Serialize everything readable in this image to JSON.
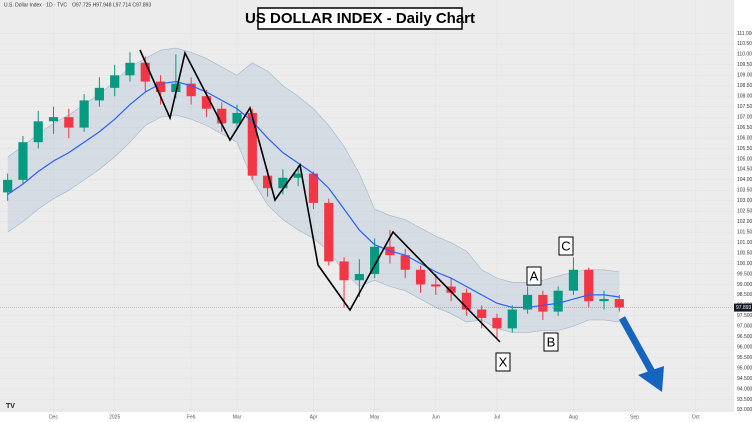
{
  "chart_data": {
    "type": "candlestick",
    "title": "US DOLLAR INDEX - Daily Chart",
    "symbol": "U.S. Dollar Index · 1D · TVC",
    "ohlc_text": "O97.725 H97.948 L97.714 C97.893",
    "last_price": {
      "value": 97.893,
      "label": "97.893"
    },
    "categories": [
      null,
      null,
      null,
      "Dec",
      null,
      null,
      null,
      "2025",
      null,
      null,
      null,
      null,
      "Feb",
      null,
      null,
      "Mar",
      null,
      null,
      null,
      null,
      "Apr",
      null,
      null,
      null,
      "May",
      null,
      null,
      null,
      "Jun",
      null,
      null,
      null,
      "Jul",
      null,
      null,
      null,
      null,
      "Aug",
      null,
      null,
      null,
      "Sep",
      null,
      null,
      null,
      "Oct",
      null,
      null
    ],
    "open": [
      103.4,
      104.0,
      105.8,
      106.8,
      107.0,
      106.5,
      107.8,
      108.4,
      109.0,
      109.6,
      108.7,
      108.2,
      108.6,
      108.0,
      107.4,
      106.7,
      107.2,
      104.2,
      103.6,
      104.1,
      104.3,
      102.9,
      100.1,
      99.2,
      99.5,
      100.8,
      100.4,
      99.7,
      99.0,
      98.9,
      98.6,
      97.8,
      97.4,
      96.9,
      97.8,
      98.5,
      97.7,
      98.7,
      99.7,
      98.2,
      98.3,
      null,
      null,
      null,
      null,
      null,
      null,
      null
    ],
    "high": [
      104.3,
      106.1,
      107.3,
      107.5,
      107.4,
      108.1,
      108.9,
      109.5,
      110.1,
      109.9,
      109.0,
      110.0,
      108.9,
      108.3,
      107.7,
      107.6,
      107.4,
      104.5,
      104.5,
      104.7,
      104.4,
      103.1,
      100.3,
      100.2,
      101.2,
      101.6,
      100.7,
      99.9,
      99.5,
      99.3,
      98.8,
      98.0,
      97.6,
      98.0,
      98.9,
      98.7,
      98.9,
      100.3,
      99.8,
      98.7,
      98.5,
      null,
      null,
      null,
      null,
      null,
      null,
      null
    ],
    "low": [
      103.0,
      103.8,
      105.5,
      106.2,
      106.0,
      106.3,
      107.5,
      108.0,
      108.7,
      108.2,
      107.6,
      107.9,
      107.6,
      107.0,
      106.3,
      106.4,
      104.0,
      103.2,
      103.3,
      103.7,
      102.6,
      99.9,
      97.9,
      98.4,
      99.3,
      100.0,
      99.3,
      98.6,
      98.5,
      98.2,
      97.5,
      96.9,
      96.4,
      96.7,
      97.6,
      97.3,
      97.5,
      98.5,
      97.9,
      97.8,
      97.7,
      null,
      null,
      null,
      null,
      null,
      null,
      null
    ],
    "close": [
      104.0,
      105.8,
      106.8,
      107.0,
      106.5,
      107.8,
      108.4,
      109.0,
      109.6,
      108.7,
      108.2,
      108.6,
      108.0,
      107.4,
      106.7,
      107.2,
      104.2,
      103.6,
      104.1,
      104.3,
      102.9,
      100.1,
      99.2,
      99.5,
      100.8,
      100.4,
      99.7,
      99.0,
      98.9,
      98.6,
      97.8,
      97.4,
      96.9,
      97.8,
      98.5,
      97.7,
      98.7,
      99.7,
      98.2,
      98.3,
      97.9,
      null,
      null,
      null,
      null,
      null,
      null,
      null
    ],
    "up_color": "#089981",
    "down_color": "#f23645",
    "moving_average": {
      "color": "#2962ff",
      "values": [
        103.3,
        103.8,
        104.4,
        104.9,
        105.3,
        105.8,
        106.3,
        106.9,
        107.6,
        108.2,
        108.6,
        108.7,
        108.5,
        108.2,
        107.8,
        107.4,
        106.8,
        106.0,
        105.3,
        104.8,
        104.3,
        103.6,
        102.6,
        101.6,
        100.9,
        100.6,
        100.4,
        100.0,
        99.6,
        99.3,
        98.9,
        98.5,
        98.1,
        97.9,
        97.9,
        98.0,
        98.1,
        98.3,
        98.5,
        98.5,
        98.4,
        null,
        null,
        null,
        null,
        null,
        null,
        null
      ]
    },
    "band": {
      "color": "#9fb6cc",
      "upper": [
        105.1,
        105.6,
        106.2,
        106.7,
        107.1,
        107.6,
        108.1,
        108.7,
        109.4,
        109.8,
        110.2,
        110.3,
        110.1,
        109.8,
        109.4,
        109.0,
        109.6,
        109.2,
        108.5,
        108.0,
        107.4,
        106.6,
        105.6,
        104.3,
        102.6,
        102.3,
        102.1,
        101.7,
        101.3,
        101.0,
        100.6,
        99.7,
        99.3,
        99.1,
        99.1,
        99.2,
        99.4,
        99.6,
        99.7,
        99.7,
        99.6,
        null,
        null,
        null,
        null,
        null,
        null,
        null
      ],
      "lower": [
        101.5,
        102.0,
        102.6,
        103.1,
        103.5,
        104.0,
        104.5,
        105.1,
        105.8,
        106.6,
        107.0,
        107.1,
        106.9,
        106.6,
        106.2,
        105.8,
        104.0,
        102.8,
        102.1,
        101.6,
        101.2,
        100.6,
        99.6,
        98.9,
        99.2,
        98.9,
        98.7,
        98.3,
        97.9,
        97.6,
        97.2,
        97.3,
        96.9,
        96.7,
        96.7,
        96.8,
        96.8,
        97.0,
        97.3,
        97.3,
        97.2,
        null,
        null,
        null,
        null,
        null,
        null,
        null
      ]
    },
    "ylim": [
      92.9,
      112.6
    ],
    "yticks": [
      {
        "value": 93,
        "label": "93.000"
      },
      {
        "value": 93.5,
        "label": "93.500"
      },
      {
        "value": 94,
        "label": "94.000"
      },
      {
        "value": 94.5,
        "label": "94.500"
      },
      {
        "value": 95,
        "label": "95.000"
      },
      {
        "value": 95.5,
        "label": "95.500"
      },
      {
        "value": 96,
        "label": "96.000"
      },
      {
        "value": 96.5,
        "label": "96.500"
      },
      {
        "value": 97,
        "label": "97.000"
      },
      {
        "value": 97.5,
        "label": "97.500"
      },
      {
        "value": 98,
        "label": "98.000"
      },
      {
        "value": 98.5,
        "label": "98.500"
      },
      {
        "value": 99,
        "label": "99.000"
      },
      {
        "value": 99.5,
        "label": "99.500"
      },
      {
        "value": 100,
        "label": "100.000"
      },
      {
        "value": 100.5,
        "label": "100.500"
      },
      {
        "value": 101,
        "label": "101.000"
      },
      {
        "value": 101.5,
        "label": "101.500"
      },
      {
        "value": 102,
        "label": "102.000"
      },
      {
        "value": 102.5,
        "label": "102.500"
      },
      {
        "value": 103,
        "label": "103.000"
      },
      {
        "value": 103.5,
        "label": "103.500"
      },
      {
        "value": 104,
        "label": "104.000"
      },
      {
        "value": 104.5,
        "label": "104.500"
      },
      {
        "value": 105,
        "label": "105.000"
      },
      {
        "value": 105.5,
        "label": "105.500"
      },
      {
        "value": 106,
        "label": "106.000"
      },
      {
        "value": 106.5,
        "label": "106.500"
      },
      {
        "value": 107,
        "label": "107.000"
      },
      {
        "value": 107.5,
        "label": "107.500"
      },
      {
        "value": 108,
        "label": "108.000"
      },
      {
        "value": 108.5,
        "label": "108.500"
      },
      {
        "value": 109,
        "label": "109.000"
      },
      {
        "value": 109.5,
        "label": "109.500"
      },
      {
        "value": 110,
        "label": "110.000"
      },
      {
        "value": 110.5,
        "label": "110.500"
      },
      {
        "value": 111,
        "label": "111.000"
      }
    ],
    "grid": true,
    "annotations": [
      "A",
      "B",
      "C",
      "X"
    ]
  }
}
